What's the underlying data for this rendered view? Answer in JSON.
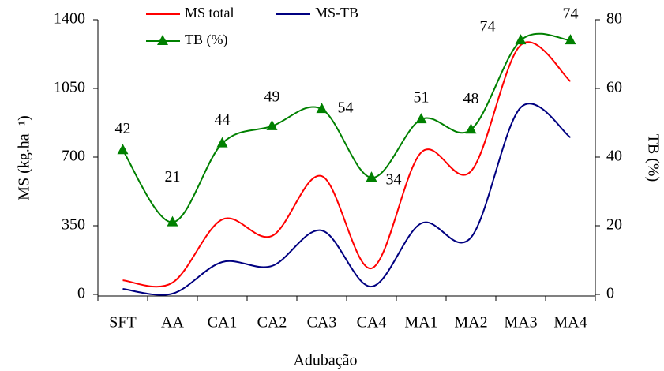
{
  "chart_data": {
    "type": "line",
    "x_label": "Adubação",
    "y_label": "MS (kg.ha⁻¹)",
    "y2_label": "TB (%)",
    "categories": [
      "SFT",
      "AA",
      "CA1",
      "CA2",
      "CA3",
      "CA4",
      "MA1",
      "MA2",
      "MA3",
      "MA4"
    ],
    "series": [
      {
        "name": "MS total",
        "color": "#ff0000",
        "values": [
          72,
          60,
          382,
          298,
          603,
          133,
          724,
          628,
          1271,
          1086
        ]
      },
      {
        "name": "MS-TB",
        "color": "#000080",
        "values": [
          28,
          4,
          165,
          145,
          326,
          40,
          362,
          290,
          953,
          800
        ]
      },
      {
        "name": "TB (%)",
        "color": "#008000",
        "axis": "y2",
        "marker": "triangle",
        "data_labels": true,
        "values": [
          42,
          21,
          44,
          49,
          54,
          34,
          51,
          48,
          74,
          74
        ]
      }
    ],
    "ylim": [
      0,
      1400
    ],
    "yticks": [
      0,
      350,
      700,
      1050,
      1400
    ],
    "y2lim": [
      0,
      80
    ],
    "y2ticks": [
      0,
      20,
      40,
      60,
      80
    ],
    "grid": false
  }
}
